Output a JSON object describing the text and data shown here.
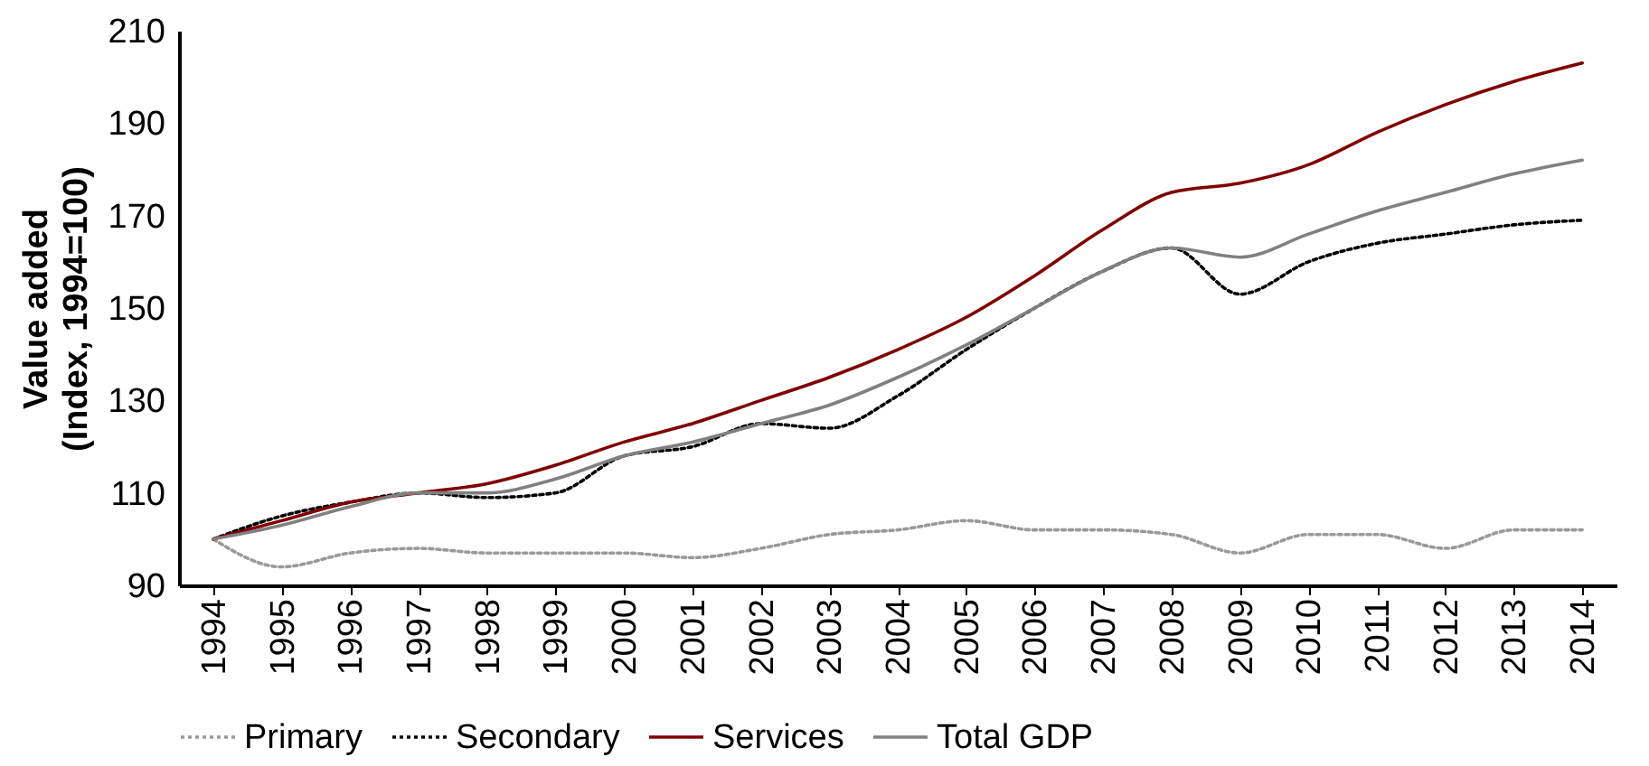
{
  "chart_data": {
    "type": "line",
    "ylabel": "Value added\n(Index, 1994=100)",
    "categories": [
      "1994",
      "1995",
      "1996",
      "1997",
      "1998",
      "1999",
      "2000",
      "2001",
      "2002",
      "2003",
      "2004",
      "2005",
      "2006",
      "2007",
      "2008",
      "2009",
      "2010",
      "2011",
      "2012",
      "2013",
      "2014"
    ],
    "series": [
      {
        "name": "Primary",
        "color": "#999999",
        "line_style": "dotted",
        "values": [
          100,
          94,
          97,
          98,
          97,
          97,
          97,
          96,
          98,
          101,
          102,
          104,
          102,
          102,
          101,
          97,
          101,
          101,
          98,
          102,
          102
        ]
      },
      {
        "name": "Secondary",
        "color": "#000000",
        "line_style": "dotted",
        "values": [
          100,
          105,
          108,
          110,
          109,
          110,
          118,
          120,
          125,
          124,
          131,
          141,
          150,
          158,
          163,
          153,
          160,
          164,
          166,
          168,
          169
        ]
      },
      {
        "name": "Services",
        "color": "#800000",
        "line_style": "solid",
        "values": [
          100,
          104,
          108,
          110,
          112,
          116,
          121,
          125,
          130,
          135,
          141,
          148,
          157,
          167,
          175,
          177,
          181,
          188,
          194,
          199,
          203
        ]
      },
      {
        "name": "Total GDP",
        "color": "#808080",
        "line_style": "solid",
        "values": [
          100,
          103,
          107,
          110,
          110,
          113,
          118,
          121,
          125,
          129,
          135,
          142,
          150,
          158,
          163,
          161,
          166,
          171,
          175,
          179,
          182
        ]
      }
    ],
    "ylim": [
      90,
      210
    ],
    "yticks": [
      90,
      110,
      130,
      150,
      170,
      190,
      210
    ],
    "grid": false,
    "legend": "bottom",
    "marker": "none"
  }
}
